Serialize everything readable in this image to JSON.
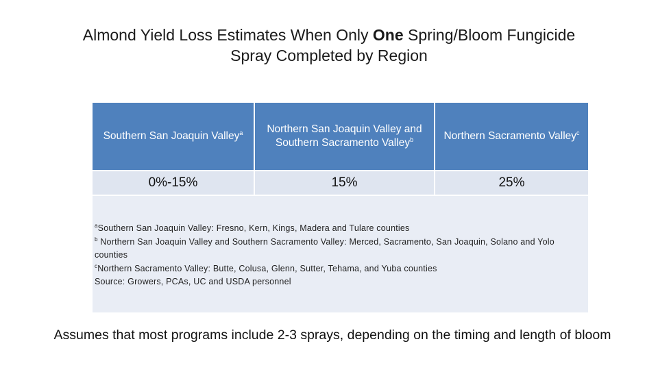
{
  "title": {
    "line1_before": "Almond Yield Loss Estimates When Only ",
    "line1_bold": "One",
    "line1_after": " Spring/Bloom Fungicide",
    "line2": "Spray Completed by Region"
  },
  "table": {
    "headers": [
      {
        "label": "Southern San Joaquin Valley",
        "marker": "a"
      },
      {
        "label": "Northern San Joaquin Valley and Southern Sacramento Valley",
        "marker": "b"
      },
      {
        "label": "Northern Sacramento Valley",
        "marker": "c"
      }
    ],
    "values": [
      "0%-15%",
      "15%",
      "25%"
    ],
    "notes": [
      {
        "marker": "a",
        "text": "Southern San Joaquin Valley: Fresno, Kern, Kings, Madera and Tulare counties"
      },
      {
        "marker": "b",
        "text": " Northern San Joaquin Valley and Southern Sacramento Valley: Merced, Sacramento, San Joaquin, Solano and Yolo counties"
      },
      {
        "marker": "c",
        "text": "Northern Sacramento Valley: Butte, Colusa, Glenn, Sutter, Tehama, and Yuba counties"
      },
      {
        "marker": "",
        "text": "Source: Growers, PCAs, UC and USDA personnel"
      }
    ]
  },
  "footer": "Assumes that most programs include 2-3 sprays, depending on the timing and length of bloom",
  "colors": {
    "header_bg": "#4f81bd",
    "value_bg": "#dfe5f0",
    "notes_bg": "#e9edf5"
  }
}
